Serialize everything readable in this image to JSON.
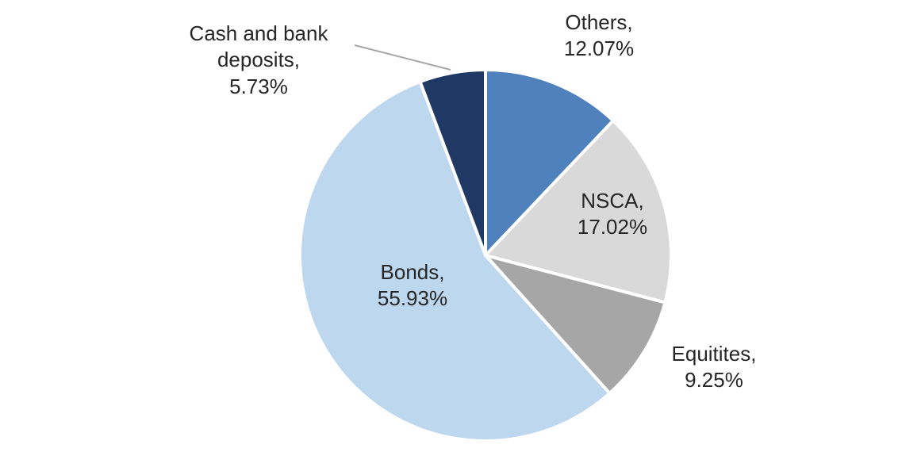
{
  "chart_data": {
    "type": "pie",
    "title": "",
    "direction": "clockwise",
    "start_angle_deg": 0,
    "legend": "none",
    "labels_position": "outside (Bonds label inside slice)",
    "categories": [
      "Others",
      "NSCA",
      "Equitites",
      "Bonds",
      "Cash and bank deposits"
    ],
    "values": [
      12.07,
      17.02,
      9.25,
      55.93,
      5.73
    ],
    "slices": [
      {
        "label": "Others",
        "value": 12.07,
        "display": "Others,",
        "pct": "12.07%",
        "color": "#4F81BD"
      },
      {
        "label": "NSCA",
        "value": 17.02,
        "display": "NSCA,",
        "pct": "17.02%",
        "color": "#D9D9D9"
      },
      {
        "label": "Equitites",
        "value": 9.25,
        "display": "Equitites,",
        "pct": "9.25%",
        "color": "#A6A6A6"
      },
      {
        "label": "Bonds",
        "value": 55.93,
        "display": "Bonds,",
        "pct": "55.93%",
        "color": "#BDD7EE"
      },
      {
        "label": "Cash and bank deposits",
        "value": 5.73,
        "display": "Cash and bank deposits,",
        "pct": "5.73%",
        "color": "#1F3864"
      }
    ],
    "colors": {
      "others": "#4F81BD",
      "nsca": "#D9D9D9",
      "equitites": "#A6A6A6",
      "bonds": "#BDD7EE",
      "cash_and_bank_deposits": "#1F3864",
      "label_text": "#262626",
      "leader_line": "#A6A6A6",
      "slice_gap": "#FFFFFF"
    }
  }
}
